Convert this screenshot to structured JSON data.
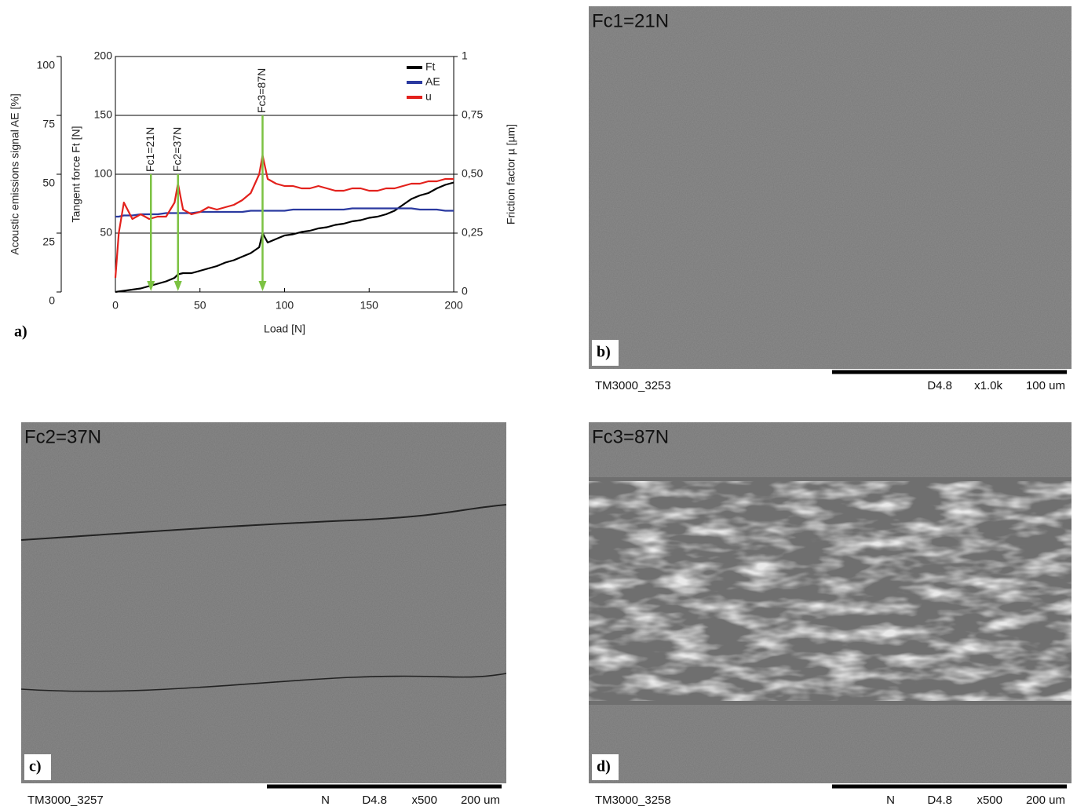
{
  "chart_data": {
    "type": "line",
    "panel_label": "a)",
    "xlabel": "Load [N]",
    "ylabel": "Tangent force Ft [N]",
    "y2label": "Friction factor µ [µm]",
    "y3label": "Acoustic emissions signal AE [%]",
    "x": [
      0,
      2,
      5,
      10,
      15,
      20,
      25,
      30,
      35,
      37,
      40,
      45,
      50,
      55,
      60,
      65,
      70,
      75,
      80,
      85,
      87,
      90,
      95,
      100,
      105,
      110,
      115,
      120,
      125,
      130,
      135,
      140,
      145,
      150,
      155,
      160,
      165,
      170,
      175,
      180,
      185,
      190,
      195,
      200
    ],
    "xlim": [
      0,
      200
    ],
    "xticks": [
      0,
      50,
      100,
      150,
      200
    ],
    "ylim": [
      0,
      200
    ],
    "yticks": [
      50,
      100,
      150,
      200
    ],
    "y2lim": [
      0,
      1
    ],
    "y2ticks": [
      0,
      {
        "value": 0.25,
        "label": "0,25"
      },
      {
        "value": 0.5,
        "label": "0,50"
      },
      {
        "value": 0.75,
        "label": "0,75"
      },
      1
    ],
    "y3lim": [
      0,
      100
    ],
    "y3ticks": [
      0,
      25,
      50,
      75,
      100
    ],
    "grid": true,
    "legend": "upper right",
    "series": [
      {
        "name": "Ft",
        "color": "#000000",
        "axis": "y",
        "values": [
          0,
          0.5,
          1,
          2,
          3,
          5,
          7,
          9,
          12,
          15,
          16,
          16,
          18,
          20,
          22,
          25,
          27,
          30,
          33,
          38,
          50,
          42,
          45,
          48,
          49,
          51,
          52,
          54,
          55,
          57,
          58,
          60,
          61,
          63,
          64,
          66,
          69,
          74,
          79,
          82,
          84,
          88,
          91,
          93
        ]
      },
      {
        "name": "AE",
        "color": "#2b3aa0",
        "axis": "y3",
        "values": [
          32,
          32,
          32.5,
          32.5,
          33,
          33,
          33,
          33.5,
          33.5,
          33.5,
          33.5,
          33.5,
          34,
          34,
          34,
          34,
          34,
          34,
          34.5,
          34.5,
          34.5,
          34.5,
          34.5,
          34.5,
          35,
          35,
          35,
          35,
          35,
          35,
          35,
          35.5,
          35.5,
          35.5,
          35.5,
          35.5,
          35.5,
          35.5,
          35.5,
          35,
          35,
          35,
          34.5,
          34.5
        ]
      },
      {
        "name": "u",
        "color": "#e3211c",
        "axis": "y2",
        "values": [
          0.06,
          0.25,
          0.38,
          0.31,
          0.33,
          0.31,
          0.32,
          0.32,
          0.38,
          0.46,
          0.35,
          0.33,
          0.34,
          0.36,
          0.35,
          0.36,
          0.37,
          0.39,
          0.42,
          0.5,
          0.58,
          0.48,
          0.46,
          0.45,
          0.45,
          0.44,
          0.44,
          0.45,
          0.44,
          0.43,
          0.43,
          0.44,
          0.44,
          0.43,
          0.43,
          0.44,
          0.44,
          0.45,
          0.46,
          0.46,
          0.47,
          0.47,
          0.48,
          0.48
        ]
      }
    ],
    "annotations": [
      {
        "text": "Fc1=21N",
        "x": 21
      },
      {
        "text": "Fc2=37N",
        "x": 37
      },
      {
        "text": "Fc3=87N",
        "x": 87
      }
    ],
    "annotation_color": "#7cc242"
  },
  "images": [
    {
      "panel_label": "b)",
      "caption": "Fc1=21N",
      "file": "TM3000_3253",
      "info": [
        "D4.8",
        "x1.0k",
        "100 um"
      ]
    },
    {
      "panel_label": "c)",
      "caption": "Fc2=37N",
      "file": "TM3000_3257",
      "info": [
        "N",
        "D4.8",
        "x500",
        "200 um"
      ]
    },
    {
      "panel_label": "d)",
      "caption": "Fc3=87N",
      "file": "TM3000_3258",
      "info": [
        "N",
        "D4.8",
        "x500",
        "200 um"
      ]
    }
  ]
}
